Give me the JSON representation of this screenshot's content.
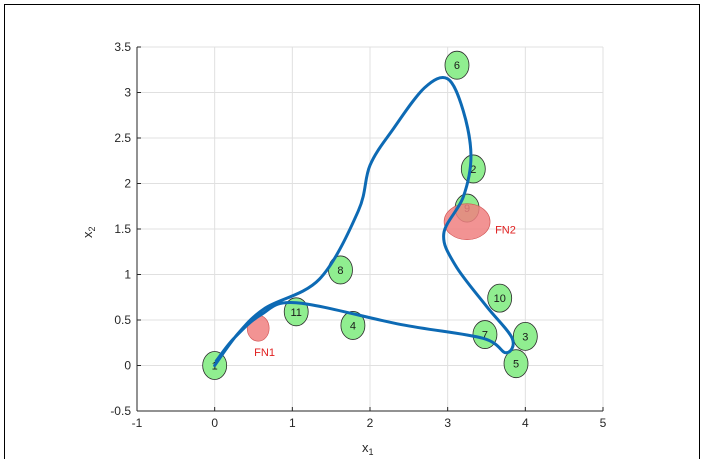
{
  "chart_data": {
    "type": "scatter",
    "title": "",
    "xlabel": "x",
    "xlabel_sub": "1",
    "ylabel": "x",
    "ylabel_sub": "2",
    "xlim": [
      -1,
      5
    ],
    "ylim": [
      -0.5,
      3.5
    ],
    "grid": true,
    "x_ticks": [
      -1,
      0,
      1,
      2,
      3,
      4,
      5
    ],
    "x_tick_labels": [
      "-1",
      "0",
      "1",
      "2",
      "3",
      "4",
      "5"
    ],
    "y_ticks": [
      -0.5,
      0,
      0.5,
      1,
      1.5,
      2,
      2.5,
      3,
      3.5
    ],
    "y_tick_labels": [
      "-0.5",
      "0",
      "0.5",
      "1",
      "1.5",
      "2",
      "2.5",
      "3",
      "3.5"
    ],
    "nodes": [
      {
        "label": "1",
        "x": 0.0,
        "y": 0.0
      },
      {
        "label": "2",
        "x": 3.33,
        "y": 2.16
      },
      {
        "label": "3",
        "x": 4.0,
        "y": 0.32
      },
      {
        "label": "4",
        "x": 1.78,
        "y": 0.44
      },
      {
        "label": "5",
        "x": 3.88,
        "y": 0.02
      },
      {
        "label": "6",
        "x": 3.12,
        "y": 3.3
      },
      {
        "label": "7",
        "x": 3.48,
        "y": 0.34
      },
      {
        "label": "8",
        "x": 1.62,
        "y": 1.05
      },
      {
        "label": "9",
        "x": 3.25,
        "y": 1.73
      },
      {
        "label": "10",
        "x": 3.67,
        "y": 0.74
      },
      {
        "label": "11",
        "x": 1.05,
        "y": 0.59
      }
    ],
    "fault_nodes": [
      {
        "label": "FN1",
        "x": 0.56,
        "y": 0.41
      },
      {
        "label": "FN2",
        "x": 3.25,
        "y": 1.58
      }
    ],
    "path": {
      "color": "#0d6ab4",
      "points": [
        [
          0.0,
          0.0
        ],
        [
          0.3,
          0.35
        ],
        [
          0.65,
          0.63
        ],
        [
          1.35,
          0.95
        ],
        [
          1.85,
          1.7
        ],
        [
          2.0,
          2.2
        ],
        [
          2.3,
          2.6
        ],
        [
          2.7,
          3.05
        ],
        [
          3.0,
          3.15
        ],
        [
          3.2,
          2.8
        ],
        [
          3.3,
          2.3
        ],
        [
          3.2,
          1.85
        ],
        [
          2.95,
          1.45
        ],
        [
          3.1,
          1.1
        ],
        [
          3.5,
          0.65
        ],
        [
          3.83,
          0.3
        ],
        [
          3.75,
          0.14
        ],
        [
          3.45,
          0.3
        ],
        [
          2.4,
          0.45
        ],
        [
          1.05,
          0.69
        ],
        [
          0.6,
          0.56
        ],
        [
          0.25,
          0.3
        ],
        [
          0.02,
          0.05
        ]
      ]
    },
    "colors": {
      "node_fill": "#90ee90",
      "fault_fill": "#f08080",
      "fault_label": "#e02020",
      "grid": "#e0e0e0",
      "axis": "#262626"
    }
  }
}
